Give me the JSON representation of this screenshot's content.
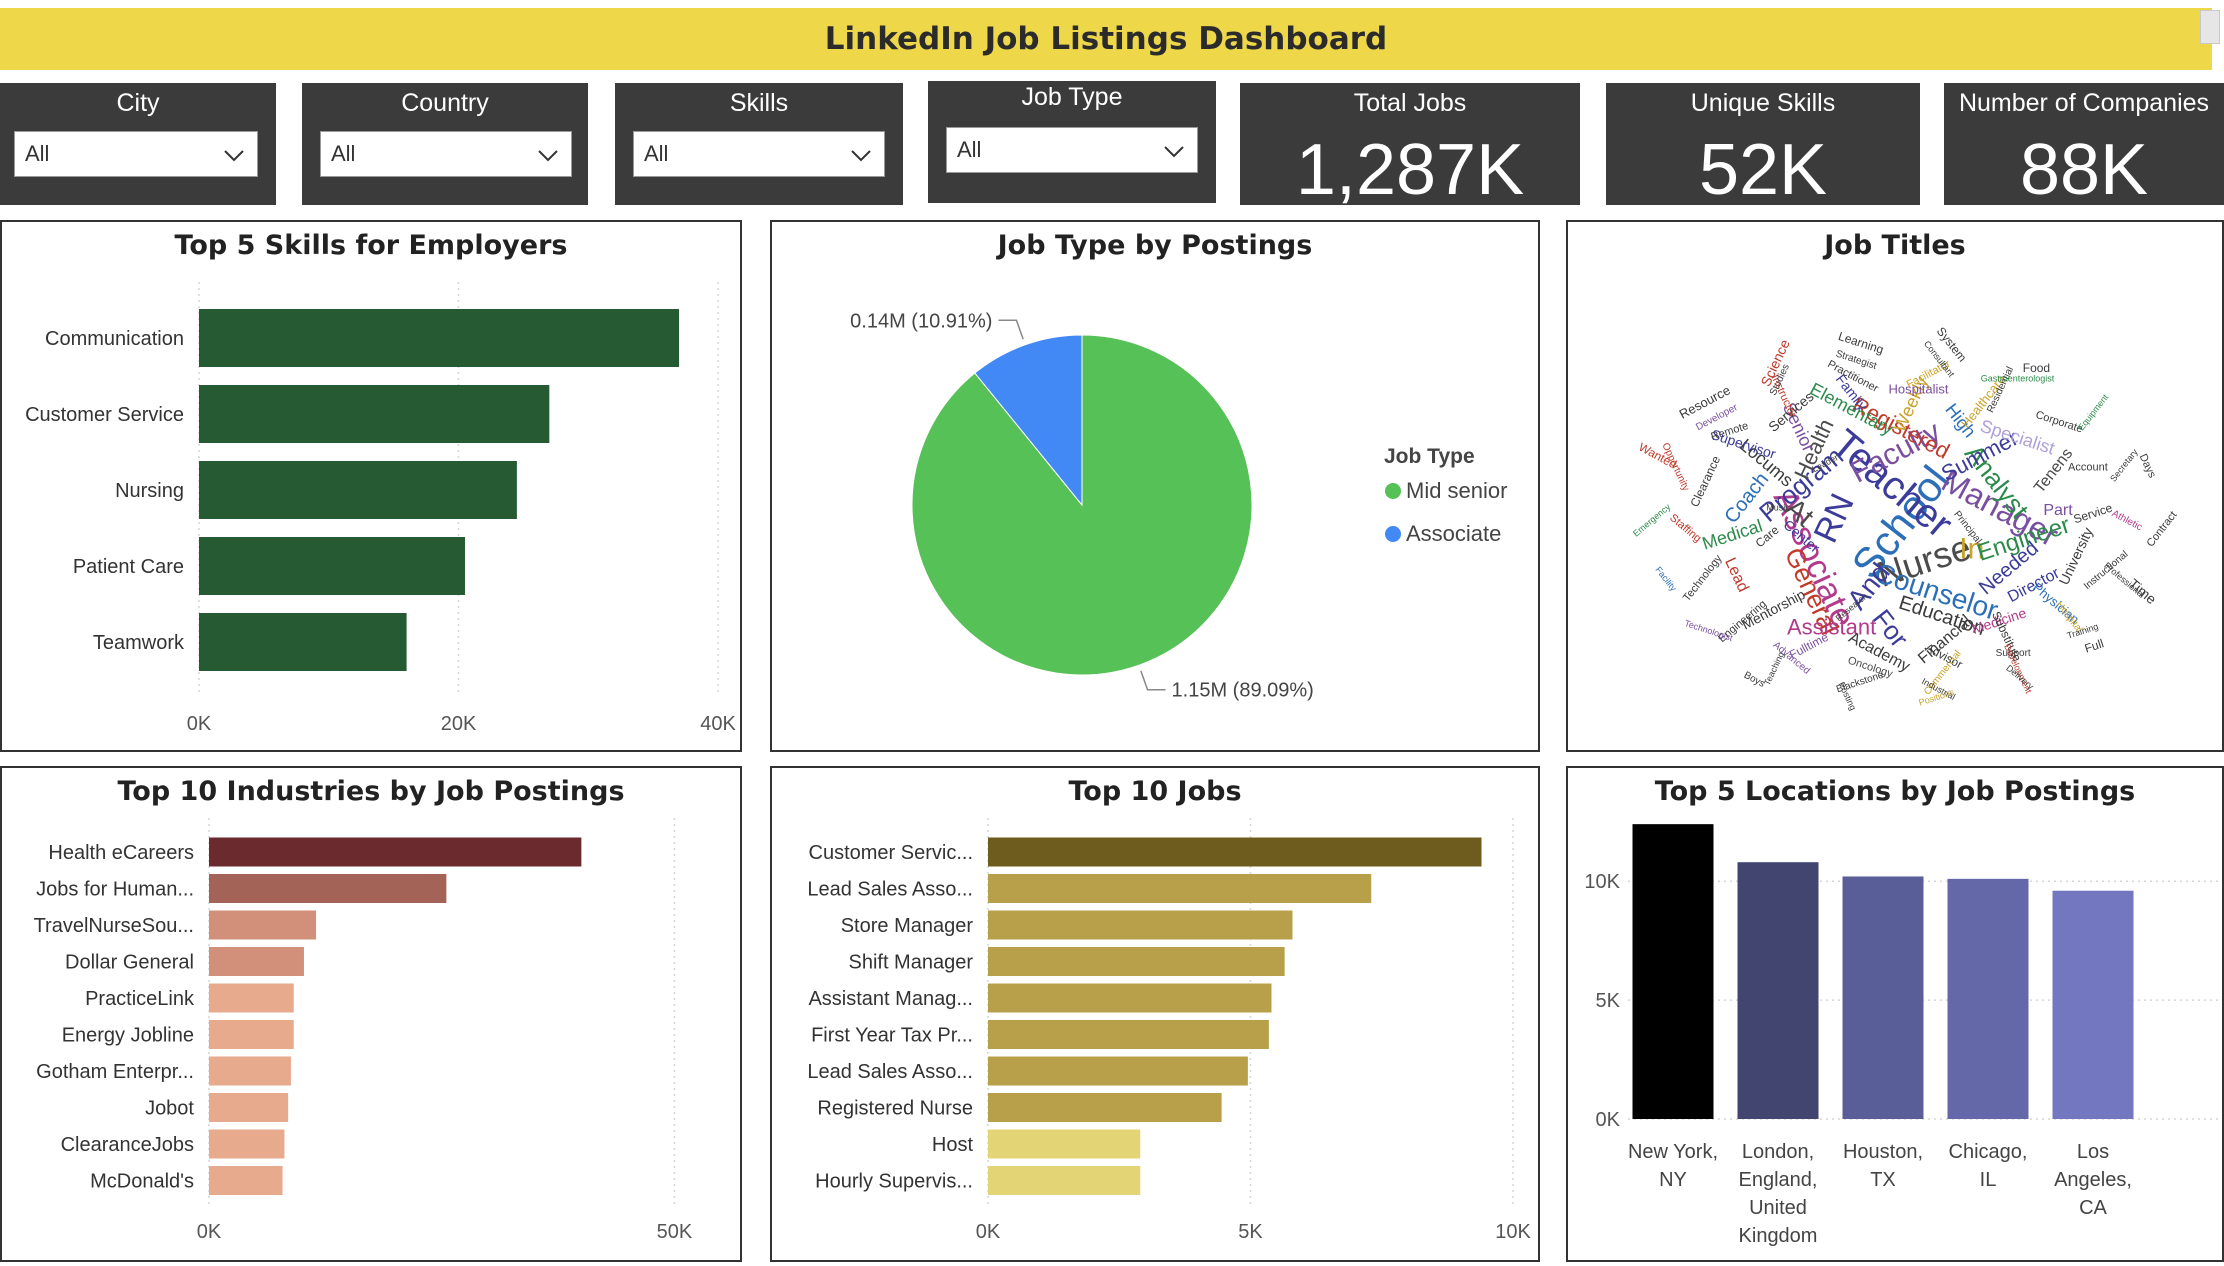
{
  "header": {
    "title": "LinkedIn Job Listings Dashboard"
  },
  "filters": [
    {
      "label": "City",
      "value": "All"
    },
    {
      "label": "Country",
      "value": "All"
    },
    {
      "label": "Skills",
      "value": "All"
    },
    {
      "label": "Job Type",
      "value": "All"
    }
  ],
  "kpis": [
    {
      "label": "Total Jobs",
      "value": "1,287K"
    },
    {
      "label": "Unique Skills",
      "value": "52K"
    },
    {
      "label": "Number of Companies",
      "value": "88K"
    }
  ],
  "chart_data": [
    {
      "id": "skills",
      "type": "bar",
      "orientation": "horizontal",
      "title": "Top 5 Skills for Employers",
      "categories": [
        "Communication",
        "Customer Service",
        "Nursing",
        "Patient Care",
        "Teamwork"
      ],
      "values": [
        37000,
        27000,
        24500,
        20500,
        16000
      ],
      "xlim": [
        0,
        40000
      ],
      "ticks": [
        0,
        20000,
        40000
      ],
      "tick_labels": [
        "0K",
        "20K",
        "40K"
      ],
      "colors": [
        "#255a33",
        "#255a33",
        "#255a33",
        "#255a33",
        "#255a33"
      ],
      "grid": true
    },
    {
      "id": "jobtype",
      "type": "pie",
      "title": "Job Type by Postings",
      "legend_title": "Job Type",
      "legend_position": "right",
      "slices": [
        {
          "name": "Mid senior",
          "value": 1.15,
          "percent": 89.09,
          "label": "1.15M (89.09%)",
          "color": "#56c156"
        },
        {
          "name": "Associate",
          "value": 0.14,
          "percent": 10.91,
          "label": "0.14M (10.91%)",
          "color": "#4289f6"
        }
      ]
    },
    {
      "id": "industries",
      "type": "bar",
      "orientation": "horizontal",
      "title": "Top 10 Industries by Job Postings",
      "categories": [
        "Health eCareers",
        "Jobs for Human...",
        "TravelNurseSou...",
        "Dollar General",
        "PracticeLink",
        "Energy Jobline",
        "Gotham Enterpr...",
        "Jobot",
        "ClearanceJobs",
        "McDonald's"
      ],
      "values": [
        40000,
        25500,
        11500,
        10200,
        9100,
        9100,
        8800,
        8500,
        8100,
        7900
      ],
      "xlim": [
        0,
        55000
      ],
      "ticks": [
        0,
        50000
      ],
      "tick_labels": [
        "0K",
        "50K"
      ],
      "colors": [
        "#6b2a2e",
        "#a36357",
        "#d2907a",
        "#d2907a",
        "#e8aa8c",
        "#e8aa8c",
        "#e8aa8c",
        "#e8aa8c",
        "#e8aa8c",
        "#e8aa8c"
      ],
      "grid": true
    },
    {
      "id": "jobs",
      "type": "bar",
      "orientation": "horizontal",
      "title": "Top 10 Jobs",
      "categories": [
        "Customer Servic...",
        "Lead Sales Asso...",
        "Store Manager",
        "Shift Manager",
        "Assistant Manag...",
        "First Year Tax Pr...",
        "Lead Sales Asso...",
        "Registered Nurse",
        "Host",
        "Hourly Supervis..."
      ],
      "values": [
        9400,
        7300,
        5800,
        5650,
        5400,
        5350,
        4950,
        4450,
        2900,
        2900
      ],
      "xlim": [
        0,
        10000
      ],
      "ticks": [
        0,
        5000,
        10000
      ],
      "tick_labels": [
        "0K",
        "5K",
        "10K"
      ],
      "colors": [
        "#6e5c1f",
        "#b8a04a",
        "#b8a04a",
        "#b8a04a",
        "#b8a04a",
        "#b8a04a",
        "#b8a04a",
        "#b8a04a",
        "#e3d475",
        "#e3d475"
      ],
      "grid": true
    },
    {
      "id": "locations",
      "type": "bar",
      "orientation": "vertical",
      "title": "Top 5 Locations by Job Postings",
      "categories": [
        [
          "New York,",
          "NY"
        ],
        [
          "London,",
          "England,",
          "United",
          "Kingdom"
        ],
        [
          "Houston,",
          "TX"
        ],
        [
          "Chicago,",
          "IL"
        ],
        [
          "Los",
          "Angeles,",
          "CA"
        ]
      ],
      "values": [
        12400,
        10800,
        10200,
        10100,
        9600
      ],
      "ylim": [
        0,
        13500
      ],
      "ticks": [
        0,
        5000,
        10000
      ],
      "tick_labels": [
        "0K",
        "5K",
        "10K"
      ],
      "colors": [
        "#000000",
        "#414570",
        "#5a5e98",
        "#6468a8",
        "#7277c0"
      ],
      "grid": true
    }
  ],
  "wordcloud": {
    "title": "Job Titles",
    "words": [
      [
        "School",
        42,
        "#2c6fb8"
      ],
      [
        "Teacher",
        40,
        "#3b3b9a"
      ],
      [
        "Nurse",
        36,
        "#4b4b4b"
      ],
      [
        "Associate",
        34,
        "#b23a8c"
      ],
      [
        "Manager",
        32,
        "#7a4fa0"
      ],
      [
        "Faculty",
        30,
        "#7a4fa0"
      ],
      [
        "RN",
        34,
        "#3b3b9a"
      ],
      [
        "Counselor",
        28,
        "#2c6fb8"
      ],
      [
        "Program",
        26,
        "#3b3b9a"
      ],
      [
        "Analyst",
        26,
        "#2c8a4a"
      ],
      [
        "In",
        30,
        "#c9a227"
      ],
      [
        "And",
        28,
        "#3b3b9a"
      ],
      [
        "At",
        28,
        "#4b4b4b"
      ],
      [
        "Engineer",
        24,
        "#2c8a4a"
      ],
      [
        "General",
        26,
        "#c0392b"
      ],
      [
        "Registered",
        22,
        "#c0392b"
      ],
      [
        "Summer",
        22,
        "#3b3b9a"
      ],
      [
        "Health",
        22,
        "#4b4b4b"
      ],
      [
        "Education",
        20,
        "#3b3b3b"
      ],
      [
        "Needed",
        20,
        "#3b3b9a"
      ],
      [
        "For",
        26,
        "#3b3b9a"
      ],
      [
        "Assistant",
        22,
        "#b23a8c"
      ],
      [
        "Coach",
        20,
        "#2c6fb8"
      ],
      [
        "Locums",
        18,
        "#3b3b3b"
      ],
      [
        "Medical",
        18,
        "#2c8a4a"
      ],
      [
        "Senior",
        18,
        "#7a4fa0"
      ],
      [
        "Elementary",
        18,
        "#2c8a4a"
      ],
      [
        "Director",
        16,
        "#3b3b9a"
      ],
      [
        "Weekly",
        18,
        "#c9a227"
      ],
      [
        "Specialist",
        18,
        "#b0a0d8"
      ],
      [
        "Financial",
        16,
        "#3b3b3b"
      ],
      [
        "High",
        18,
        "#2c6fb8"
      ],
      [
        "Part",
        16,
        "#7a4fa0"
      ],
      [
        "Tenens",
        16,
        "#4b4b4b"
      ],
      [
        "Center",
        14,
        "#3b3b9a"
      ],
      [
        "Medicine",
        14,
        "#b23a8c"
      ],
      [
        "Lead",
        16,
        "#c0392b"
      ],
      [
        "Academy",
        16,
        "#3b3b3b"
      ],
      [
        "Mentorship",
        14,
        "#3b3b3b"
      ],
      [
        "University",
        14,
        "#3b3b3b"
      ],
      [
        "Supervisor",
        14,
        "#3b3b9a"
      ],
      [
        "Services",
        14,
        "#3b3b3b"
      ],
      [
        "Family",
        14,
        "#3b3b9a"
      ],
      [
        "Hospitalist",
        13,
        "#7a4fa0"
      ],
      [
        "Healthcare",
        13,
        "#c9a227"
      ],
      [
        "Physician",
        13,
        "#2c6fb8"
      ],
      [
        "Service",
        12,
        "#3b3b3b"
      ],
      [
        "Substitute",
        12,
        "#3b3b3b"
      ],
      [
        "Advisor",
        12,
        "#3b3b3b"
      ],
      [
        "Fulltime",
        12,
        "#7a4fa0"
      ],
      [
        "Clearance",
        12,
        "#3b3b3b"
      ],
      [
        "Oncology",
        11,
        "#4b4b4b"
      ],
      [
        "Engineering",
        11,
        "#3b3b3b"
      ],
      [
        "Principal",
        10,
        "#3b3b3b"
      ],
      [
        "Account",
        11,
        "#3b3b3b"
      ],
      [
        "Technology",
        11,
        "#3b3b3b"
      ],
      [
        "Staffing",
        11,
        "#c0392b"
      ],
      [
        "Remote",
        11,
        "#3b3b3b"
      ],
      [
        "Instructor",
        11,
        "#c0392b"
      ],
      [
        "Practitioner",
        11,
        "#3b3b3b"
      ],
      [
        "Facilitator",
        11,
        "#c9a227"
      ],
      [
        "Residential",
        10,
        "#3b3b3b"
      ],
      [
        "Corporate",
        11,
        "#3b3b3b"
      ],
      [
        "Instructional",
        10,
        "#3b3b3b"
      ],
      [
        "Hospital",
        10,
        "#c9a227"
      ],
      [
        "Support",
        10,
        "#3b3b3b"
      ],
      [
        "Commercial",
        10,
        "#c9a227"
      ],
      [
        "Advanced",
        10,
        "#7a4fa0"
      ],
      [
        "Blackstone",
        10,
        "#3b3b3b"
      ],
      [
        "Opportunity",
        10,
        "#c0392b"
      ],
      [
        "Athletic",
        10,
        "#b23a8c"
      ],
      [
        "Developer",
        10,
        "#7a4fa0"
      ],
      [
        "Studies",
        10,
        "#3b3b3b"
      ],
      [
        "Strategist",
        10,
        "#3b3b3b"
      ],
      [
        "Research",
        9,
        "#3b3b3b"
      ],
      [
        "Consultant",
        9,
        "#3b3b3b"
      ],
      [
        "Gastroenterologist",
        9,
        "#2c8a4a"
      ],
      [
        "Secretary",
        9,
        "#3b3b3b"
      ],
      [
        "Professional",
        9,
        "#3b3b3b"
      ],
      [
        "Training",
        9,
        "#3b3b3b"
      ],
      [
        "Development",
        9,
        "#c0392b"
      ],
      [
        "Industrial",
        9,
        "#3b3b3b"
      ],
      [
        "Leader",
        9,
        "#3b3b3b"
      ],
      [
        "Teaching",
        9,
        "#3b3b3b"
      ],
      [
        "Technologist",
        9,
        "#7a4fa0"
      ],
      [
        "Emergency",
        9,
        "#2c8a4a"
      ],
      [
        "Facility",
        9,
        "#2c6fb8"
      ],
      [
        "Music",
        9,
        "#3b3b3b"
      ],
      [
        "Equipment",
        9,
        "#2c8a4a"
      ],
      [
        "Delivery",
        9,
        "#3b3b3b"
      ],
      [
        "Positions",
        9,
        "#c9a227"
      ],
      [
        "Posting",
        9,
        "#3b3b3b"
      ],
      [
        "Wanted",
        12,
        "#c0392b"
      ],
      [
        "Resource",
        13,
        "#3b3b3b"
      ],
      [
        "Science",
        14,
        "#c0392b"
      ],
      [
        "Learning",
        12,
        "#3b3b3b"
      ],
      [
        "Care",
        12,
        "#3b3b3b"
      ],
      [
        "System",
        12,
        "#3b3b3b"
      ],
      [
        "Food",
        12,
        "#3b3b3b"
      ],
      [
        "Contract",
        11,
        "#3b3b3b"
      ],
      [
        "Time",
        14,
        "#3b3b3b"
      ],
      [
        "Full",
        12,
        "#3b3b3b"
      ],
      [
        "Days",
        11,
        "#3b3b3b"
      ],
      [
        "Boys",
        10,
        "#3b3b3b"
      ]
    ]
  }
}
